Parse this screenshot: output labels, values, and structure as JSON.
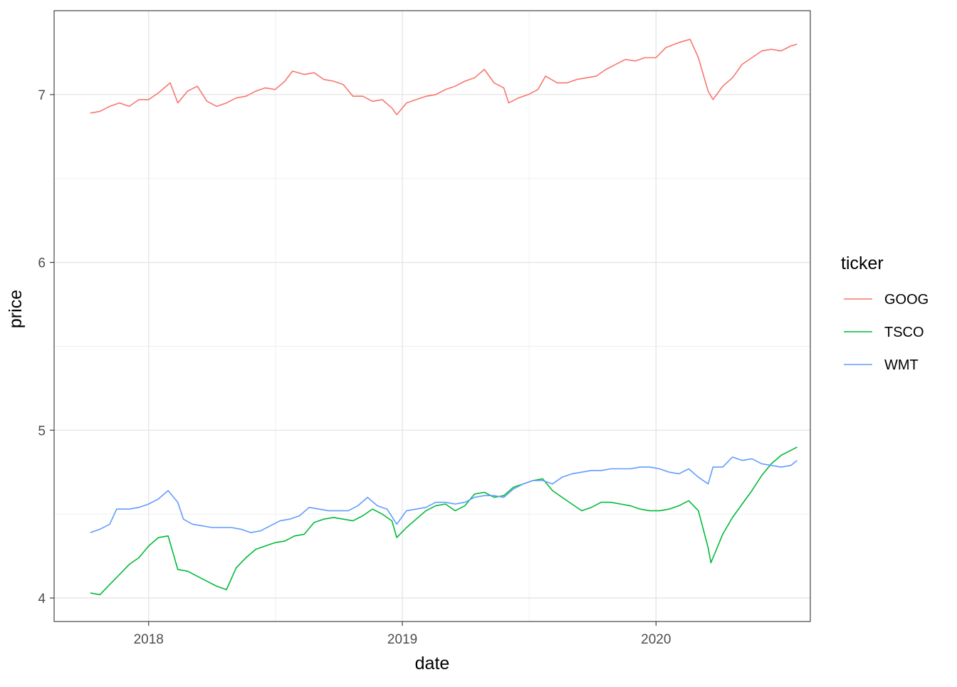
{
  "chart_data": {
    "type": "line",
    "title": "",
    "xlabel": "date",
    "ylabel": "price",
    "x_ticks": [
      {
        "date": "2018-01-01",
        "label": "2018"
      },
      {
        "date": "2019-01-01",
        "label": "2019"
      },
      {
        "date": "2020-01-01",
        "label": "2020"
      }
    ],
    "x_range": [
      "2017-08-18",
      "2020-08-10"
    ],
    "y_ticks": [
      {
        "value": 4,
        "label": "4"
      },
      {
        "value": 5,
        "label": "5"
      },
      {
        "value": 6,
        "label": "6"
      },
      {
        "value": 7,
        "label": "7"
      }
    ],
    "ylim": [
      3.86,
      7.5
    ],
    "grid": true,
    "legend": {
      "title": "ticker",
      "position": "right"
    },
    "series": [
      {
        "name": "GOOG",
        "color": "#F8766D",
        "points": [
          [
            "2017-10-09",
            6.89
          ],
          [
            "2017-10-23",
            6.9
          ],
          [
            "2017-11-06",
            6.93
          ],
          [
            "2017-11-20",
            6.95
          ],
          [
            "2017-12-04",
            6.93
          ],
          [
            "2017-12-18",
            6.97
          ],
          [
            "2018-01-01",
            6.97
          ],
          [
            "2018-01-15",
            7.01
          ],
          [
            "2018-02-01",
            7.07
          ],
          [
            "2018-02-12",
            6.95
          ],
          [
            "2018-02-26",
            7.02
          ],
          [
            "2018-03-12",
            7.05
          ],
          [
            "2018-03-26",
            6.96
          ],
          [
            "2018-04-09",
            6.93
          ],
          [
            "2018-04-23",
            6.95
          ],
          [
            "2018-05-07",
            6.98
          ],
          [
            "2018-05-21",
            6.99
          ],
          [
            "2018-06-04",
            7.02
          ],
          [
            "2018-06-18",
            7.04
          ],
          [
            "2018-07-02",
            7.03
          ],
          [
            "2018-07-16",
            7.08
          ],
          [
            "2018-07-27",
            7.14
          ],
          [
            "2018-08-13",
            7.12
          ],
          [
            "2018-08-27",
            7.13
          ],
          [
            "2018-09-10",
            7.09
          ],
          [
            "2018-09-24",
            7.08
          ],
          [
            "2018-10-08",
            7.06
          ],
          [
            "2018-10-22",
            6.99
          ],
          [
            "2018-11-05",
            6.99
          ],
          [
            "2018-11-19",
            6.96
          ],
          [
            "2018-12-03",
            6.97
          ],
          [
            "2018-12-17",
            6.92
          ],
          [
            "2018-12-24",
            6.88
          ],
          [
            "2019-01-07",
            6.95
          ],
          [
            "2019-01-21",
            6.97
          ],
          [
            "2019-02-04",
            6.99
          ],
          [
            "2019-02-18",
            7.0
          ],
          [
            "2019-03-04",
            7.03
          ],
          [
            "2019-03-18",
            7.05
          ],
          [
            "2019-04-01",
            7.08
          ],
          [
            "2019-04-15",
            7.1
          ],
          [
            "2019-04-29",
            7.15
          ],
          [
            "2019-05-13",
            7.07
          ],
          [
            "2019-05-27",
            7.04
          ],
          [
            "2019-06-03",
            6.95
          ],
          [
            "2019-06-17",
            6.98
          ],
          [
            "2019-07-01",
            7.0
          ],
          [
            "2019-07-15",
            7.03
          ],
          [
            "2019-07-26",
            7.11
          ],
          [
            "2019-08-12",
            7.07
          ],
          [
            "2019-08-26",
            7.07
          ],
          [
            "2019-09-09",
            7.09
          ],
          [
            "2019-09-23",
            7.1
          ],
          [
            "2019-10-07",
            7.11
          ],
          [
            "2019-10-21",
            7.15
          ],
          [
            "2019-11-04",
            7.18
          ],
          [
            "2019-11-18",
            7.21
          ],
          [
            "2019-12-02",
            7.2
          ],
          [
            "2019-12-16",
            7.22
          ],
          [
            "2020-01-01",
            7.22
          ],
          [
            "2020-01-15",
            7.28
          ],
          [
            "2020-02-03",
            7.31
          ],
          [
            "2020-02-19",
            7.33
          ],
          [
            "2020-03-02",
            7.22
          ],
          [
            "2020-03-16",
            7.02
          ],
          [
            "2020-03-23",
            6.97
          ],
          [
            "2020-04-06",
            7.05
          ],
          [
            "2020-04-20",
            7.1
          ],
          [
            "2020-05-04",
            7.18
          ],
          [
            "2020-05-18",
            7.22
          ],
          [
            "2020-06-01",
            7.26
          ],
          [
            "2020-06-15",
            7.27
          ],
          [
            "2020-06-29",
            7.26
          ],
          [
            "2020-07-13",
            7.29
          ],
          [
            "2020-07-22",
            7.3
          ]
        ]
      },
      {
        "name": "TSCO",
        "color": "#00BA38",
        "points": [
          [
            "2017-10-09",
            4.03
          ],
          [
            "2017-10-23",
            4.02
          ],
          [
            "2017-11-06",
            4.08
          ],
          [
            "2017-11-20",
            4.14
          ],
          [
            "2017-12-04",
            4.2
          ],
          [
            "2017-12-18",
            4.24
          ],
          [
            "2018-01-01",
            4.31
          ],
          [
            "2018-01-15",
            4.36
          ],
          [
            "2018-01-29",
            4.37
          ],
          [
            "2018-02-12",
            4.17
          ],
          [
            "2018-02-26",
            4.16
          ],
          [
            "2018-03-12",
            4.13
          ],
          [
            "2018-03-26",
            4.1
          ],
          [
            "2018-04-09",
            4.07
          ],
          [
            "2018-04-23",
            4.05
          ],
          [
            "2018-05-07",
            4.18
          ],
          [
            "2018-05-21",
            4.24
          ],
          [
            "2018-06-04",
            4.29
          ],
          [
            "2018-06-18",
            4.31
          ],
          [
            "2018-07-02",
            4.33
          ],
          [
            "2018-07-16",
            4.34
          ],
          [
            "2018-07-30",
            4.37
          ],
          [
            "2018-08-13",
            4.38
          ],
          [
            "2018-08-27",
            4.45
          ],
          [
            "2018-09-10",
            4.47
          ],
          [
            "2018-09-24",
            4.48
          ],
          [
            "2018-10-08",
            4.47
          ],
          [
            "2018-10-22",
            4.46
          ],
          [
            "2018-11-05",
            4.49
          ],
          [
            "2018-11-19",
            4.53
          ],
          [
            "2018-12-03",
            4.5
          ],
          [
            "2018-12-17",
            4.46
          ],
          [
            "2018-12-24",
            4.36
          ],
          [
            "2019-01-07",
            4.42
          ],
          [
            "2019-01-21",
            4.47
          ],
          [
            "2019-02-04",
            4.52
          ],
          [
            "2019-02-18",
            4.55
          ],
          [
            "2019-03-04",
            4.56
          ],
          [
            "2019-03-18",
            4.52
          ],
          [
            "2019-04-01",
            4.55
          ],
          [
            "2019-04-15",
            4.62
          ],
          [
            "2019-04-29",
            4.63
          ],
          [
            "2019-05-13",
            4.6
          ],
          [
            "2019-05-27",
            4.61
          ],
          [
            "2019-06-10",
            4.66
          ],
          [
            "2019-06-24",
            4.68
          ],
          [
            "2019-07-08",
            4.7
          ],
          [
            "2019-07-22",
            4.71
          ],
          [
            "2019-08-05",
            4.64
          ],
          [
            "2019-08-19",
            4.6
          ],
          [
            "2019-09-02",
            4.56
          ],
          [
            "2019-09-16",
            4.52
          ],
          [
            "2019-09-30",
            4.54
          ],
          [
            "2019-10-14",
            4.57
          ],
          [
            "2019-10-28",
            4.57
          ],
          [
            "2019-11-11",
            4.56
          ],
          [
            "2019-11-25",
            4.55
          ],
          [
            "2019-12-09",
            4.53
          ],
          [
            "2019-12-23",
            4.52
          ],
          [
            "2020-01-06",
            4.52
          ],
          [
            "2020-01-20",
            4.53
          ],
          [
            "2020-02-03",
            4.55
          ],
          [
            "2020-02-17",
            4.58
          ],
          [
            "2020-03-02",
            4.52
          ],
          [
            "2020-03-16",
            4.3
          ],
          [
            "2020-03-20",
            4.21
          ],
          [
            "2020-04-06",
            4.38
          ],
          [
            "2020-04-20",
            4.48
          ],
          [
            "2020-05-04",
            4.56
          ],
          [
            "2020-05-18",
            4.64
          ],
          [
            "2020-06-01",
            4.73
          ],
          [
            "2020-06-15",
            4.8
          ],
          [
            "2020-06-29",
            4.85
          ],
          [
            "2020-07-13",
            4.88
          ],
          [
            "2020-07-22",
            4.9
          ]
        ]
      },
      {
        "name": "WMT",
        "color": "#619CFF",
        "points": [
          [
            "2017-10-09",
            4.39
          ],
          [
            "2017-10-23",
            4.41
          ],
          [
            "2017-11-06",
            4.44
          ],
          [
            "2017-11-16",
            4.53
          ],
          [
            "2017-12-04",
            4.53
          ],
          [
            "2017-12-18",
            4.54
          ],
          [
            "2018-01-01",
            4.56
          ],
          [
            "2018-01-15",
            4.59
          ],
          [
            "2018-01-29",
            4.64
          ],
          [
            "2018-02-12",
            4.57
          ],
          [
            "2018-02-20",
            4.47
          ],
          [
            "2018-03-05",
            4.44
          ],
          [
            "2018-03-19",
            4.43
          ],
          [
            "2018-04-02",
            4.42
          ],
          [
            "2018-04-16",
            4.42
          ],
          [
            "2018-04-30",
            4.42
          ],
          [
            "2018-05-14",
            4.41
          ],
          [
            "2018-05-28",
            4.39
          ],
          [
            "2018-06-11",
            4.4
          ],
          [
            "2018-06-25",
            4.43
          ],
          [
            "2018-07-09",
            4.46
          ],
          [
            "2018-07-23",
            4.47
          ],
          [
            "2018-08-06",
            4.49
          ],
          [
            "2018-08-20",
            4.54
          ],
          [
            "2018-09-03",
            4.53
          ],
          [
            "2018-09-17",
            4.52
          ],
          [
            "2018-10-01",
            4.52
          ],
          [
            "2018-10-15",
            4.52
          ],
          [
            "2018-10-29",
            4.55
          ],
          [
            "2018-11-12",
            4.6
          ],
          [
            "2018-11-26",
            4.55
          ],
          [
            "2018-12-10",
            4.53
          ],
          [
            "2018-12-24",
            4.44
          ],
          [
            "2019-01-07",
            4.52
          ],
          [
            "2019-01-21",
            4.53
          ],
          [
            "2019-02-04",
            4.54
          ],
          [
            "2019-02-18",
            4.57
          ],
          [
            "2019-03-04",
            4.57
          ],
          [
            "2019-03-18",
            4.56
          ],
          [
            "2019-04-01",
            4.57
          ],
          [
            "2019-04-15",
            4.6
          ],
          [
            "2019-04-29",
            4.61
          ],
          [
            "2019-05-13",
            4.61
          ],
          [
            "2019-05-27",
            4.6
          ],
          [
            "2019-06-10",
            4.65
          ],
          [
            "2019-06-24",
            4.68
          ],
          [
            "2019-07-08",
            4.7
          ],
          [
            "2019-07-22",
            4.7
          ],
          [
            "2019-08-05",
            4.68
          ],
          [
            "2019-08-19",
            4.72
          ],
          [
            "2019-09-02",
            4.74
          ],
          [
            "2019-09-16",
            4.75
          ],
          [
            "2019-09-30",
            4.76
          ],
          [
            "2019-10-14",
            4.76
          ],
          [
            "2019-10-28",
            4.77
          ],
          [
            "2019-11-11",
            4.77
          ],
          [
            "2019-11-25",
            4.77
          ],
          [
            "2019-12-09",
            4.78
          ],
          [
            "2019-12-23",
            4.78
          ],
          [
            "2020-01-06",
            4.77
          ],
          [
            "2020-01-20",
            4.75
          ],
          [
            "2020-02-03",
            4.74
          ],
          [
            "2020-02-17",
            4.77
          ],
          [
            "2020-03-02",
            4.72
          ],
          [
            "2020-03-16",
            4.68
          ],
          [
            "2020-03-23",
            4.78
          ],
          [
            "2020-04-06",
            4.78
          ],
          [
            "2020-04-20",
            4.84
          ],
          [
            "2020-05-04",
            4.82
          ],
          [
            "2020-05-18",
            4.83
          ],
          [
            "2020-06-01",
            4.8
          ],
          [
            "2020-06-15",
            4.79
          ],
          [
            "2020-06-29",
            4.78
          ],
          [
            "2020-07-13",
            4.79
          ],
          [
            "2020-07-22",
            4.82
          ]
        ]
      }
    ]
  }
}
